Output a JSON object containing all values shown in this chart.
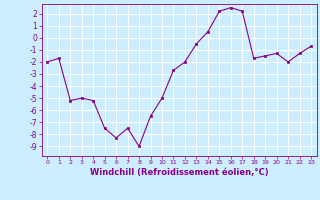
{
  "x": [
    0,
    1,
    2,
    3,
    4,
    5,
    6,
    7,
    8,
    9,
    10,
    11,
    12,
    13,
    14,
    15,
    16,
    17,
    18,
    19,
    20,
    21,
    22,
    23
  ],
  "y": [
    -2.0,
    -1.7,
    -5.2,
    -5.0,
    -5.2,
    -7.5,
    -8.3,
    -7.5,
    -9.0,
    -6.5,
    -5.0,
    -2.7,
    -2.0,
    -0.5,
    0.5,
    2.2,
    2.5,
    2.2,
    -1.7,
    -1.5,
    -1.3,
    -2.0,
    -1.3,
    -0.7
  ],
  "xlim": [
    -0.5,
    23.5
  ],
  "ylim": [
    -9.8,
    2.8
  ],
  "yticks": [
    2,
    1,
    0,
    -1,
    -2,
    -3,
    -4,
    -5,
    -6,
    -7,
    -8,
    -9
  ],
  "xticks": [
    0,
    1,
    2,
    3,
    4,
    5,
    6,
    7,
    8,
    9,
    10,
    11,
    12,
    13,
    14,
    15,
    16,
    17,
    18,
    19,
    20,
    21,
    22,
    23
  ],
  "line_color": "#880088",
  "marker_color": "#880088",
  "bg_plot": "#CCEEFF",
  "bg_fig": "#CCEEFF",
  "grid_color": "#FFFFFF",
  "xlabel": "Windchill (Refroidissement éolien,°C)",
  "xlabel_color": "#880088",
  "tick_color": "#880088",
  "xtick_fontsize": 4.5,
  "ytick_fontsize": 5.5,
  "xlabel_fontsize": 6.0
}
